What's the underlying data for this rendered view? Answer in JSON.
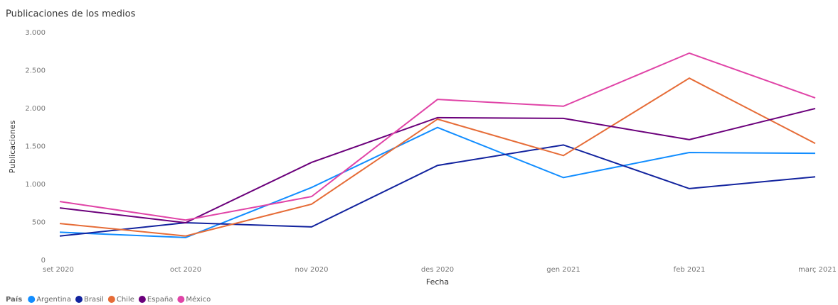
{
  "chart_data": {
    "type": "line",
    "title": "Publicaciones de los medios",
    "x_label": "Fecha",
    "y_label": "Publicaciones",
    "legend_title": "País",
    "categories": [
      "set 2020",
      "oct 2020",
      "nov 2020",
      "des 2020",
      "gen 2021",
      "feb 2021",
      "març 2021"
    ],
    "series": [
      {
        "name": "Argentina",
        "color": "#118DFF",
        "values": [
          370,
          300,
          960,
          1750,
          1090,
          1420,
          1410
        ]
      },
      {
        "name": "Brasil",
        "color": "#12239E",
        "values": [
          320,
          495,
          440,
          1250,
          1520,
          945,
          1100
        ]
      },
      {
        "name": "Chile",
        "color": "#E66C37",
        "values": [
          485,
          320,
          740,
          1860,
          1380,
          2400,
          1540
        ]
      },
      {
        "name": "España",
        "color": "#6B007B",
        "values": [
          690,
          495,
          1290,
          1880,
          1870,
          1590,
          2000
        ]
      },
      {
        "name": "México",
        "color": "#E044A7",
        "values": [
          775,
          530,
          840,
          2120,
          2030,
          2730,
          2140
        ]
      }
    ],
    "ylim": [
      0,
      3000
    ],
    "yticks": [
      0,
      500,
      {
        "value": 1000,
        "label": "1.000"
      },
      {
        "value": 1500,
        "label": "1.500"
      },
      {
        "value": 2000,
        "label": "2.000"
      },
      {
        "value": 2500,
        "label": "2.500"
      },
      {
        "value": 3000,
        "label": "3.000"
      }
    ],
    "grid": false,
    "legend_position": "bottom-left"
  }
}
